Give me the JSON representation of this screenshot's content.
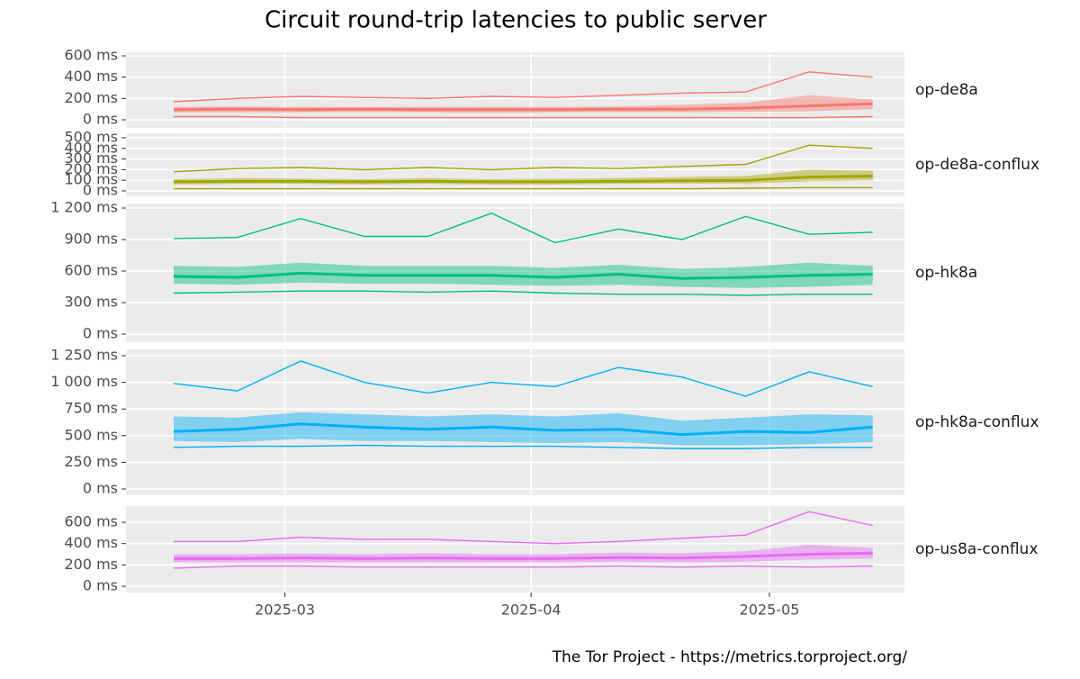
{
  "chart_data": {
    "type": "line",
    "title": "Circuit round-trip latencies to public server",
    "caption": "The Tor Project - https://metrics.torproject.org/",
    "x": [
      "2025-02-15",
      "2025-02-23",
      "2025-03-03",
      "2025-03-11",
      "2025-03-19",
      "2025-03-27",
      "2025-04-04",
      "2025-04-12",
      "2025-04-20",
      "2025-04-28",
      "2025-05-06",
      "2025-05-14"
    ],
    "xlim": [
      "2025-02-09",
      "2025-05-18"
    ],
    "xticks": [
      {
        "value": "2025-03-01",
        "label": "2025-03"
      },
      {
        "value": "2025-04-01",
        "label": "2025-04"
      },
      {
        "value": "2025-05-01",
        "label": "2025-05"
      }
    ],
    "grid": true,
    "panels": [
      {
        "label": "op-de8a",
        "color": "#F8766D",
        "ylim": [
          -76,
          634
        ],
        "yticks": [
          {
            "value": 0,
            "label": "0 ms"
          },
          {
            "value": 200,
            "label": "200 ms"
          },
          {
            "value": 400,
            "label": "400 ms"
          },
          {
            "value": 600,
            "label": "600 ms"
          }
        ],
        "high": [
          170,
          200,
          220,
          210,
          200,
          220,
          210,
          230,
          250,
          260,
          450,
          400
        ],
        "low": [
          30,
          30,
          20,
          20,
          20,
          20,
          20,
          20,
          20,
          20,
          20,
          30
        ],
        "q1": [
          70,
          70,
          70,
          70,
          70,
          65,
          70,
          70,
          70,
          75,
          80,
          100
        ],
        "median": [
          95,
          100,
          95,
          100,
          95,
          95,
          95,
          100,
          100,
          110,
          130,
          150
        ],
        "q3": [
          120,
          125,
          120,
          120,
          120,
          120,
          120,
          125,
          140,
          160,
          230,
          190
        ]
      },
      {
        "label": "op-de8a-conflux",
        "color": "#A3A500",
        "ylim": [
          -51,
          542
        ],
        "yticks": [
          {
            "value": 0,
            "label": "0 ms"
          },
          {
            "value": 100,
            "label": "100 ms"
          },
          {
            "value": 200,
            "label": "200 ms"
          },
          {
            "value": 300,
            "label": "300 ms"
          },
          {
            "value": 400,
            "label": "400 ms"
          },
          {
            "value": 500,
            "label": "500 ms"
          }
        ],
        "high": [
          180,
          210,
          220,
          200,
          220,
          200,
          220,
          210,
          230,
          250,
          430,
          400
        ],
        "low": [
          20,
          20,
          20,
          20,
          20,
          20,
          20,
          20,
          20,
          25,
          30,
          30
        ],
        "q1": [
          60,
          65,
          65,
          60,
          65,
          60,
          60,
          65,
          70,
          70,
          90,
          100
        ],
        "median": [
          85,
          90,
          90,
          85,
          90,
          85,
          85,
          90,
          95,
          100,
          130,
          140
        ],
        "q3": [
          110,
          120,
          115,
          110,
          120,
          110,
          115,
          120,
          130,
          140,
          200,
          190
        ]
      },
      {
        "label": "op-hk8a",
        "color": "#00BF7D",
        "ylim": [
          -77,
          1243
        ],
        "yticks": [
          {
            "value": 0,
            "label": "0 ms"
          },
          {
            "value": 300,
            "label": "300 ms"
          },
          {
            "value": 600,
            "label": "600 ms"
          },
          {
            "value": 900,
            "label": "900 ms"
          },
          {
            "value": 1200,
            "label": "1 200 ms"
          }
        ],
        "high": [
          910,
          920,
          1100,
          930,
          930,
          1150,
          870,
          1000,
          900,
          1120,
          950,
          970
        ],
        "low": [
          390,
          400,
          410,
          410,
          400,
          410,
          390,
          380,
          380,
          370,
          380,
          380
        ],
        "q1": [
          480,
          470,
          490,
          480,
          480,
          470,
          460,
          470,
          450,
          440,
          450,
          470
        ],
        "median": [
          550,
          540,
          580,
          560,
          560,
          560,
          540,
          570,
          530,
          540,
          560,
          570
        ],
        "q3": [
          650,
          640,
          680,
          650,
          650,
          650,
          630,
          660,
          620,
          640,
          680,
          650
        ]
      },
      {
        "label": "op-hk8a-conflux",
        "color": "#00B0F6",
        "ylim": [
          -59,
          1309
        ],
        "yticks": [
          {
            "value": 0,
            "label": "0 ms"
          },
          {
            "value": 250,
            "label": "250 ms"
          },
          {
            "value": 500,
            "label": "500 ms"
          },
          {
            "value": 750,
            "label": "750 ms"
          },
          {
            "value": 1000,
            "label": "1 000 ms"
          },
          {
            "value": 1250,
            "label": "1 250 ms"
          }
        ],
        "high": [
          990,
          920,
          1200,
          1000,
          900,
          1000,
          960,
          1140,
          1050,
          870,
          1100,
          960
        ],
        "low": [
          390,
          400,
          400,
          410,
          400,
          400,
          400,
          390,
          380,
          380,
          390,
          390
        ],
        "q1": [
          450,
          440,
          470,
          450,
          450,
          440,
          430,
          440,
          410,
          410,
          420,
          440
        ],
        "median": [
          540,
          560,
          610,
          580,
          560,
          580,
          550,
          560,
          510,
          540,
          530,
          580
        ],
        "q3": [
          680,
          670,
          720,
          700,
          680,
          700,
          680,
          710,
          640,
          670,
          700,
          690
        ]
      },
      {
        "label": "op-us8a-conflux",
        "color": "#E76BF3",
        "ylim": [
          -59,
          752
        ],
        "yticks": [
          {
            "value": 0,
            "label": "0 ms"
          },
          {
            "value": 200,
            "label": "200 ms"
          },
          {
            "value": 400,
            "label": "400 ms"
          },
          {
            "value": 600,
            "label": "600 ms"
          }
        ],
        "high": [
          420,
          420,
          460,
          440,
          440,
          420,
          400,
          420,
          450,
          480,
          700,
          570
        ],
        "low": [
          170,
          190,
          190,
          180,
          180,
          180,
          180,
          190,
          180,
          190,
          180,
          190
        ],
        "q1": [
          225,
          225,
          225,
          225,
          225,
          225,
          225,
          230,
          225,
          230,
          250,
          260
        ],
        "median": [
          260,
          260,
          265,
          260,
          265,
          260,
          260,
          270,
          265,
          280,
          300,
          310
        ],
        "q3": [
          300,
          300,
          305,
          300,
          310,
          300,
          300,
          315,
          310,
          330,
          390,
          360
        ]
      }
    ]
  }
}
